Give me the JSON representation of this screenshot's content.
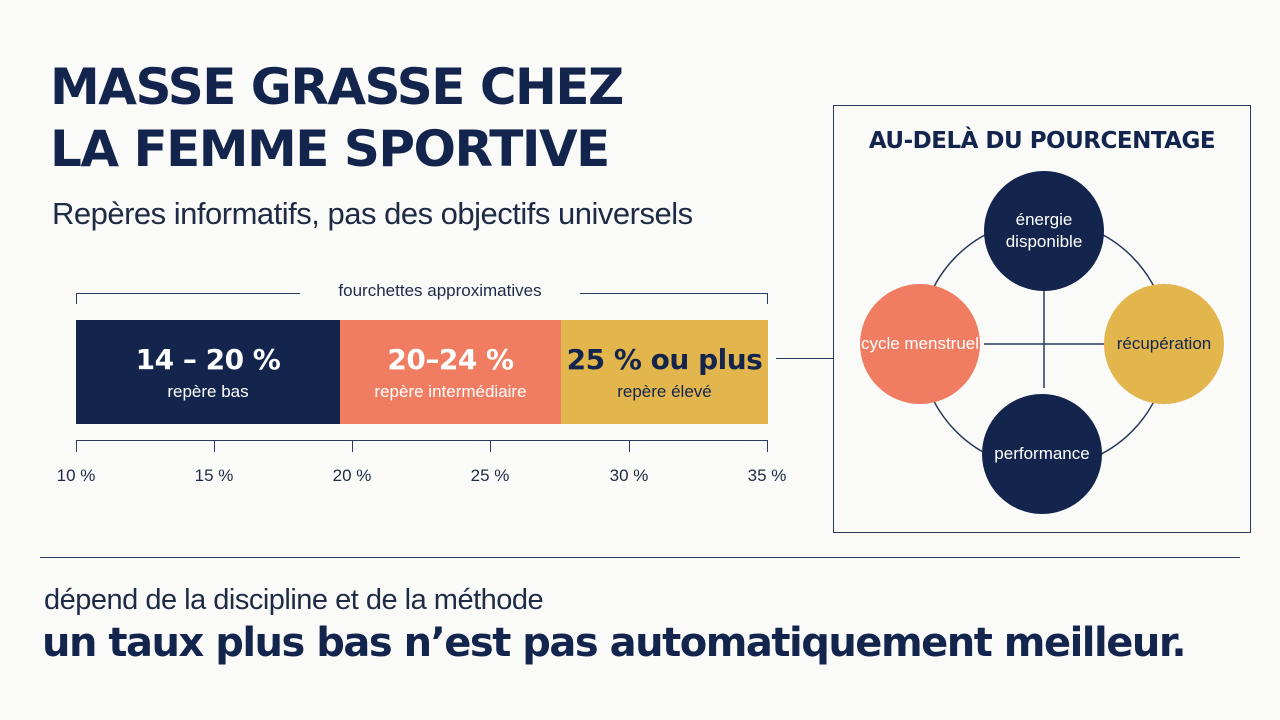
{
  "header": {
    "title_line1": "MASSE GRASSE CHEZ",
    "title_line2": "LA FEMME SPORTIVE",
    "subtitle": "Repères informatifs, pas des objectifs universels"
  },
  "range_chart": {
    "bracket_label": "fourchettes approximatives",
    "segments": [
      {
        "value": "14 – 20 %",
        "label": "repère bas",
        "color": "#13254d"
      },
      {
        "value": "20–24 %",
        "label": "repère intermédiaire",
        "color": "#f07c61"
      },
      {
        "value": "25 % ou plus",
        "label": "repère élevé",
        "color": "#e3b64d"
      }
    ],
    "axis_ticks": [
      "10 %",
      "15 %",
      "20 %",
      "25 %",
      "30 %",
      "35 %"
    ]
  },
  "panel": {
    "title": "AU-DELÀ DU POURCENTAGE",
    "nodes": {
      "top": "énergie disponible",
      "left": "cycle menstruel",
      "right": "récupération",
      "bottom": "performance"
    }
  },
  "footer": {
    "note": "dépend de la discipline et de la méthode",
    "main": "un taux plus bas n’est pas automatiquement meilleur."
  },
  "colors": {
    "navy": "#13254d",
    "coral": "#f07c61",
    "gold": "#e3b64d",
    "background": "#fafaf9"
  }
}
